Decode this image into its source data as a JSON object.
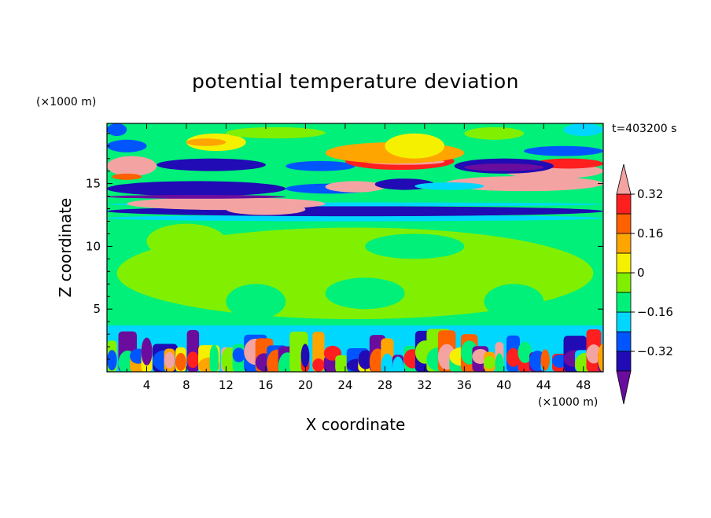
{
  "chart_data": {
    "type": "heatmap",
    "title": "potential temperature deviation",
    "xlabel": "X coordinate",
    "ylabel": "Z coordinate",
    "x_unit": "(×1000 m)",
    "y_unit": "(×1000 m)",
    "time_label": "t=403200 s",
    "xlim": [
      0,
      50
    ],
    "ylim": [
      0,
      19.8
    ],
    "x_ticks": [
      4,
      8,
      12,
      16,
      20,
      24,
      28,
      32,
      36,
      40,
      44,
      48
    ],
    "y_ticks": [
      5,
      10,
      15
    ],
    "colorbar": {
      "levels": [
        -0.4,
        -0.32,
        -0.24,
        -0.16,
        -0.08,
        0,
        0.08,
        0.16,
        0.24,
        0.32,
        0.4
      ],
      "labeled_levels": [
        0.32,
        0.16,
        0,
        -0.16,
        -0.32
      ],
      "colors": [
        "#6a0d9e",
        "#200bb4",
        "#0055ff",
        "#00d7ff",
        "#00f07a",
        "#80f000",
        "#f5f000",
        "#ffa500",
        "#ff6000",
        "#ff1f1f",
        "#f4a3a3"
      ],
      "extend": "both"
    }
  }
}
